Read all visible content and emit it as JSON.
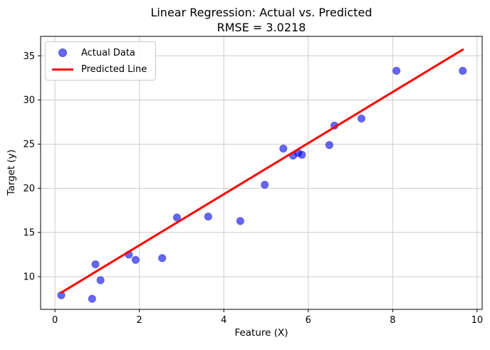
{
  "chart": {
    "title_line1": "Linear Regression: Actual vs. Predicted",
    "title_line2": "RMSE = 3.0218",
    "xlabel": "Feature (X)",
    "ylabel": "Target (y)",
    "legend": [
      {
        "label": "Actual Data",
        "marker": "dot",
        "color": "#6666f0"
      },
      {
        "label": "Predicted Line",
        "marker": "line",
        "color": "#ff0000"
      }
    ]
  },
  "chart_data": {
    "type": "scatter",
    "title": "Linear Regression: Actual vs. Predicted",
    "subtitle": "RMSE = 3.0218",
    "rmse": 3.0218,
    "xlabel": "Feature (X)",
    "ylabel": "Target (y)",
    "xlim": [
      -0.34,
      10.12
    ],
    "ylim": [
      6.3,
      37.2
    ],
    "x_ticks": [
      0,
      2,
      4,
      6,
      8,
      10
    ],
    "y_ticks": [
      10,
      15,
      20,
      25,
      30,
      35
    ],
    "grid": true,
    "legend_position": "upper left",
    "colors": {
      "grid": "#cccccc",
      "spine": "#000000",
      "scatter_fill": "rgba(0,0,235,0.6)",
      "scatter_edge": "rgba(0,0,190,0.35)",
      "line": "#ff0000"
    },
    "series": [
      {
        "name": "Actual Data",
        "type": "scatter",
        "color": "blue",
        "alpha": 0.6,
        "points": [
          [
            0.15,
            7.9
          ],
          [
            0.88,
            7.5
          ],
          [
            0.96,
            11.4
          ],
          [
            1.08,
            9.6
          ],
          [
            1.75,
            12.5
          ],
          [
            1.91,
            11.9
          ],
          [
            2.54,
            12.1
          ],
          [
            2.89,
            16.7
          ],
          [
            3.63,
            16.8
          ],
          [
            4.39,
            16.3
          ],
          [
            4.97,
            20.4
          ],
          [
            5.41,
            24.5
          ],
          [
            5.64,
            23.7
          ],
          [
            5.76,
            24.0
          ],
          [
            5.85,
            23.8
          ],
          [
            6.5,
            24.9
          ],
          [
            6.62,
            27.1
          ],
          [
            7.26,
            27.9
          ],
          [
            8.09,
            33.3
          ],
          [
            9.66,
            33.3
          ]
        ]
      },
      {
        "name": "Predicted Line",
        "type": "line",
        "color": "#ff0000",
        "points": [
          [
            0.15,
            8.2
          ],
          [
            9.66,
            35.7
          ]
        ]
      }
    ]
  }
}
